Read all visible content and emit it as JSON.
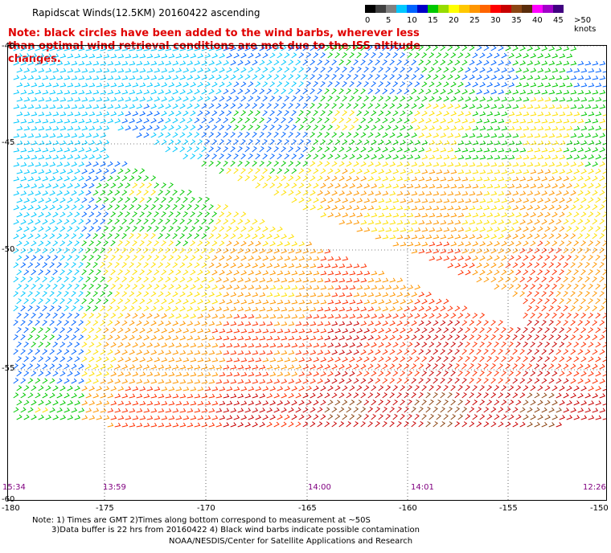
{
  "title": "Rapidscat Winds(12.5KM) 20160422 ascending",
  "note": "Note: black circles have been added to the wind barbs, wherever less than optimal wind retrieval conditions are met due to the ISS altitude changes.",
  "colorbar": {
    "colors": [
      "#000000",
      "#404040",
      "#808080",
      "#00c8ff",
      "#0064ff",
      "#0000c8",
      "#00c800",
      "#96dc00",
      "#ffff00",
      "#ffc800",
      "#ff9600",
      "#ff6400",
      "#ff0000",
      "#c80000",
      "#8b4513",
      "#5a2d0c",
      "#ff00ff",
      "#a000c8",
      "#400080"
    ],
    "labels": [
      "0",
      "5",
      "10",
      "15",
      "20",
      "25",
      "30",
      "35",
      "40",
      "45",
      ">50 knots"
    ]
  },
  "lat_labels": [
    "-40",
    "-45",
    "-50",
    "-55",
    "-60"
  ],
  "lon_labels": [
    "-180",
    "-175",
    "-170",
    "-165",
    "-160",
    "-155",
    "-150"
  ],
  "time_labels": [
    "15:34",
    "13:59",
    "14:00",
    "14:01",
    "12:26"
  ],
  "footnote": {
    "line1": "Note: 1) Times are GMT 2)Times along bottom correspond to measurement at ~50S",
    "line2": "3)Data buffer is 22 hrs from 20160422 4) Black wind barbs indicate possible contamination"
  },
  "credit": "NOAA/NESDIS/Center for Satellite Applications and Research"
}
